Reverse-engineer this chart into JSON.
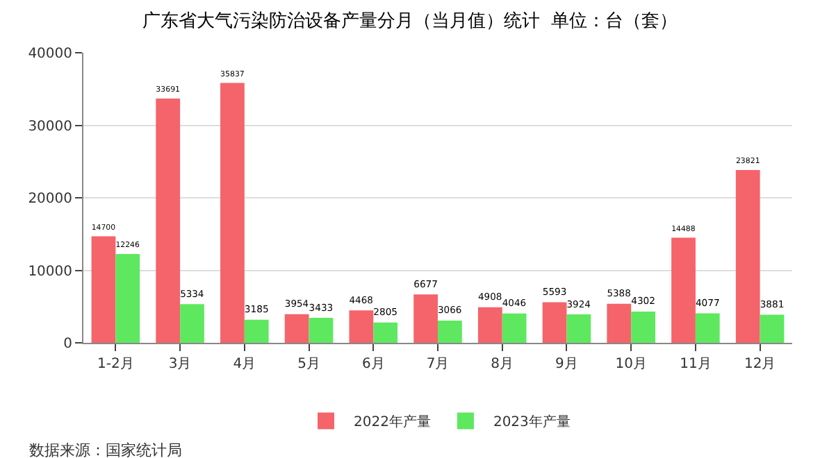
{
  "chart_data": {
    "type": "bar",
    "title": "广东省大气污染防治设备产量分月（当月值）统计  单位：台（套）",
    "categories": [
      "1-2月",
      "3月",
      "4月",
      "5月",
      "6月",
      "7月",
      "8月",
      "9月",
      "10月",
      "11月",
      "12月"
    ],
    "series": [
      {
        "name": "2022年产量",
        "color": "#f4646a",
        "values": [
          14700,
          33691,
          35837,
          3954,
          4468,
          6677,
          4908,
          5593,
          5388,
          14488,
          23821
        ]
      },
      {
        "name": "2023年产量",
        "color": "#5ee860",
        "values": [
          12246,
          5334,
          3185,
          3433,
          2805,
          3066,
          4046,
          3924,
          4302,
          4077,
          3881
        ]
      }
    ],
    "ylim": [
      0,
      40000
    ],
    "yticks": [
      0,
      10000,
      20000,
      30000,
      40000
    ],
    "grid": "y",
    "legend": "bottom",
    "data_labels": true,
    "annotations": [
      "数据来源：国家统计局"
    ]
  }
}
